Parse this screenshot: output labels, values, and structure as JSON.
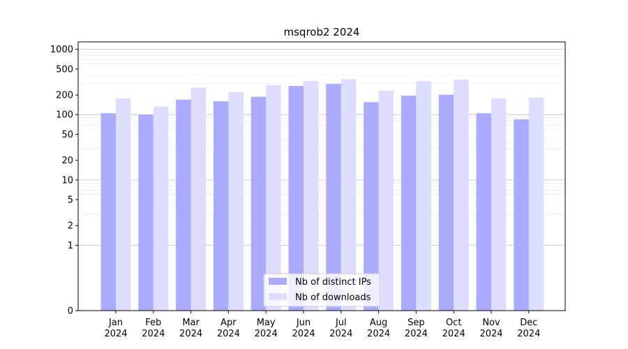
{
  "chart_data": {
    "type": "bar",
    "title": "msqrob2 2024",
    "xlabel": "",
    "ylabel": "",
    "yscale": "symlog",
    "ylim": [
      0,
      1300
    ],
    "yticks": [
      0,
      1,
      2,
      5,
      10,
      20,
      50,
      100,
      200,
      500,
      1000
    ],
    "grid": true,
    "legend_position": "bottom-center",
    "categories": [
      "Jan\n2024",
      "Feb\n2024",
      "Mar\n2024",
      "Apr\n2024",
      "May\n2024",
      "Jun\n2024",
      "Jul\n2024",
      "Aug\n2024",
      "Sep\n2024",
      "Oct\n2024",
      "Nov\n2024",
      "Dec\n2024"
    ],
    "series": [
      {
        "name": "Nb of distinct IPs",
        "color": "#aaaaff",
        "values": [
          105,
          100,
          170,
          160,
          188,
          275,
          295,
          155,
          195,
          202,
          105,
          85
        ]
      },
      {
        "name": "Nb of downloads",
        "color": "#ddddff",
        "values": [
          178,
          133,
          258,
          222,
          283,
          328,
          350,
          233,
          328,
          343,
          178,
          183
        ]
      }
    ]
  }
}
